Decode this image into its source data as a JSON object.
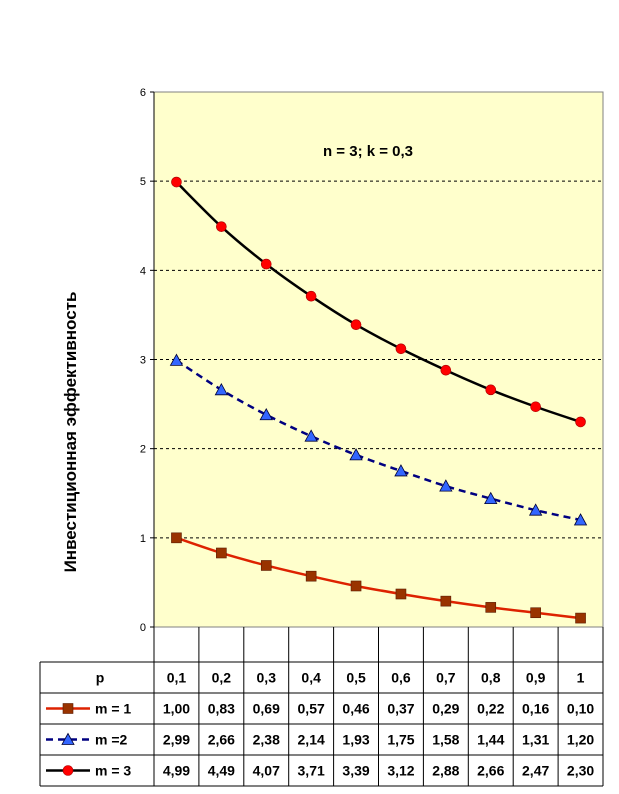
{
  "chart_data": {
    "type": "line",
    "title": "",
    "annotation": "n = 3; k = 0,3",
    "xlabel": "",
    "ylabel": "Инвестиционная эффективность",
    "ylim": [
      0,
      6
    ],
    "yticks": [
      "0",
      "1",
      "2",
      "3",
      "4",
      "5",
      "6"
    ],
    "grid": "horizontal dashed",
    "plot_background": "#FFFFCC",
    "x_header": "p",
    "categories": [
      "0,1",
      "0,2",
      "0,3",
      "0,4",
      "0,5",
      "0,6",
      "0,7",
      "0,8",
      "0,9",
      "1"
    ],
    "series": [
      {
        "name": "m = 1",
        "color": "#DD2200",
        "marker_color": "#993300",
        "marker": "square",
        "line_style": "solid",
        "values": [
          1.0,
          0.83,
          0.69,
          0.57,
          0.46,
          0.37,
          0.29,
          0.22,
          0.16,
          0.1
        ],
        "labels": [
          "1,00",
          "0,83",
          "0,69",
          "0,57",
          "0,46",
          "0,37",
          "0,29",
          "0,22",
          "0,16",
          "0,10"
        ]
      },
      {
        "name": "m =2",
        "color": "#000080",
        "marker_color": "#3366FF",
        "marker": "triangle",
        "line_style": "dashed",
        "values": [
          2.99,
          2.66,
          2.38,
          2.14,
          1.93,
          1.75,
          1.58,
          1.44,
          1.31,
          1.2
        ],
        "labels": [
          "2,99",
          "2,66",
          "2,38",
          "2,14",
          "1,93",
          "1,75",
          "1,58",
          "1,44",
          "1,31",
          "1,20"
        ]
      },
      {
        "name": "m = 3",
        "color": "#000000",
        "marker_color": "#FF0000",
        "marker": "circle",
        "line_style": "solid",
        "values": [
          4.99,
          4.49,
          4.07,
          3.71,
          3.39,
          3.12,
          2.88,
          2.66,
          2.47,
          2.3
        ],
        "labels": [
          "4,99",
          "4,49",
          "4,07",
          "3,71",
          "3,39",
          "3,12",
          "2,88",
          "2,66",
          "2,47",
          "2,30"
        ]
      }
    ]
  }
}
